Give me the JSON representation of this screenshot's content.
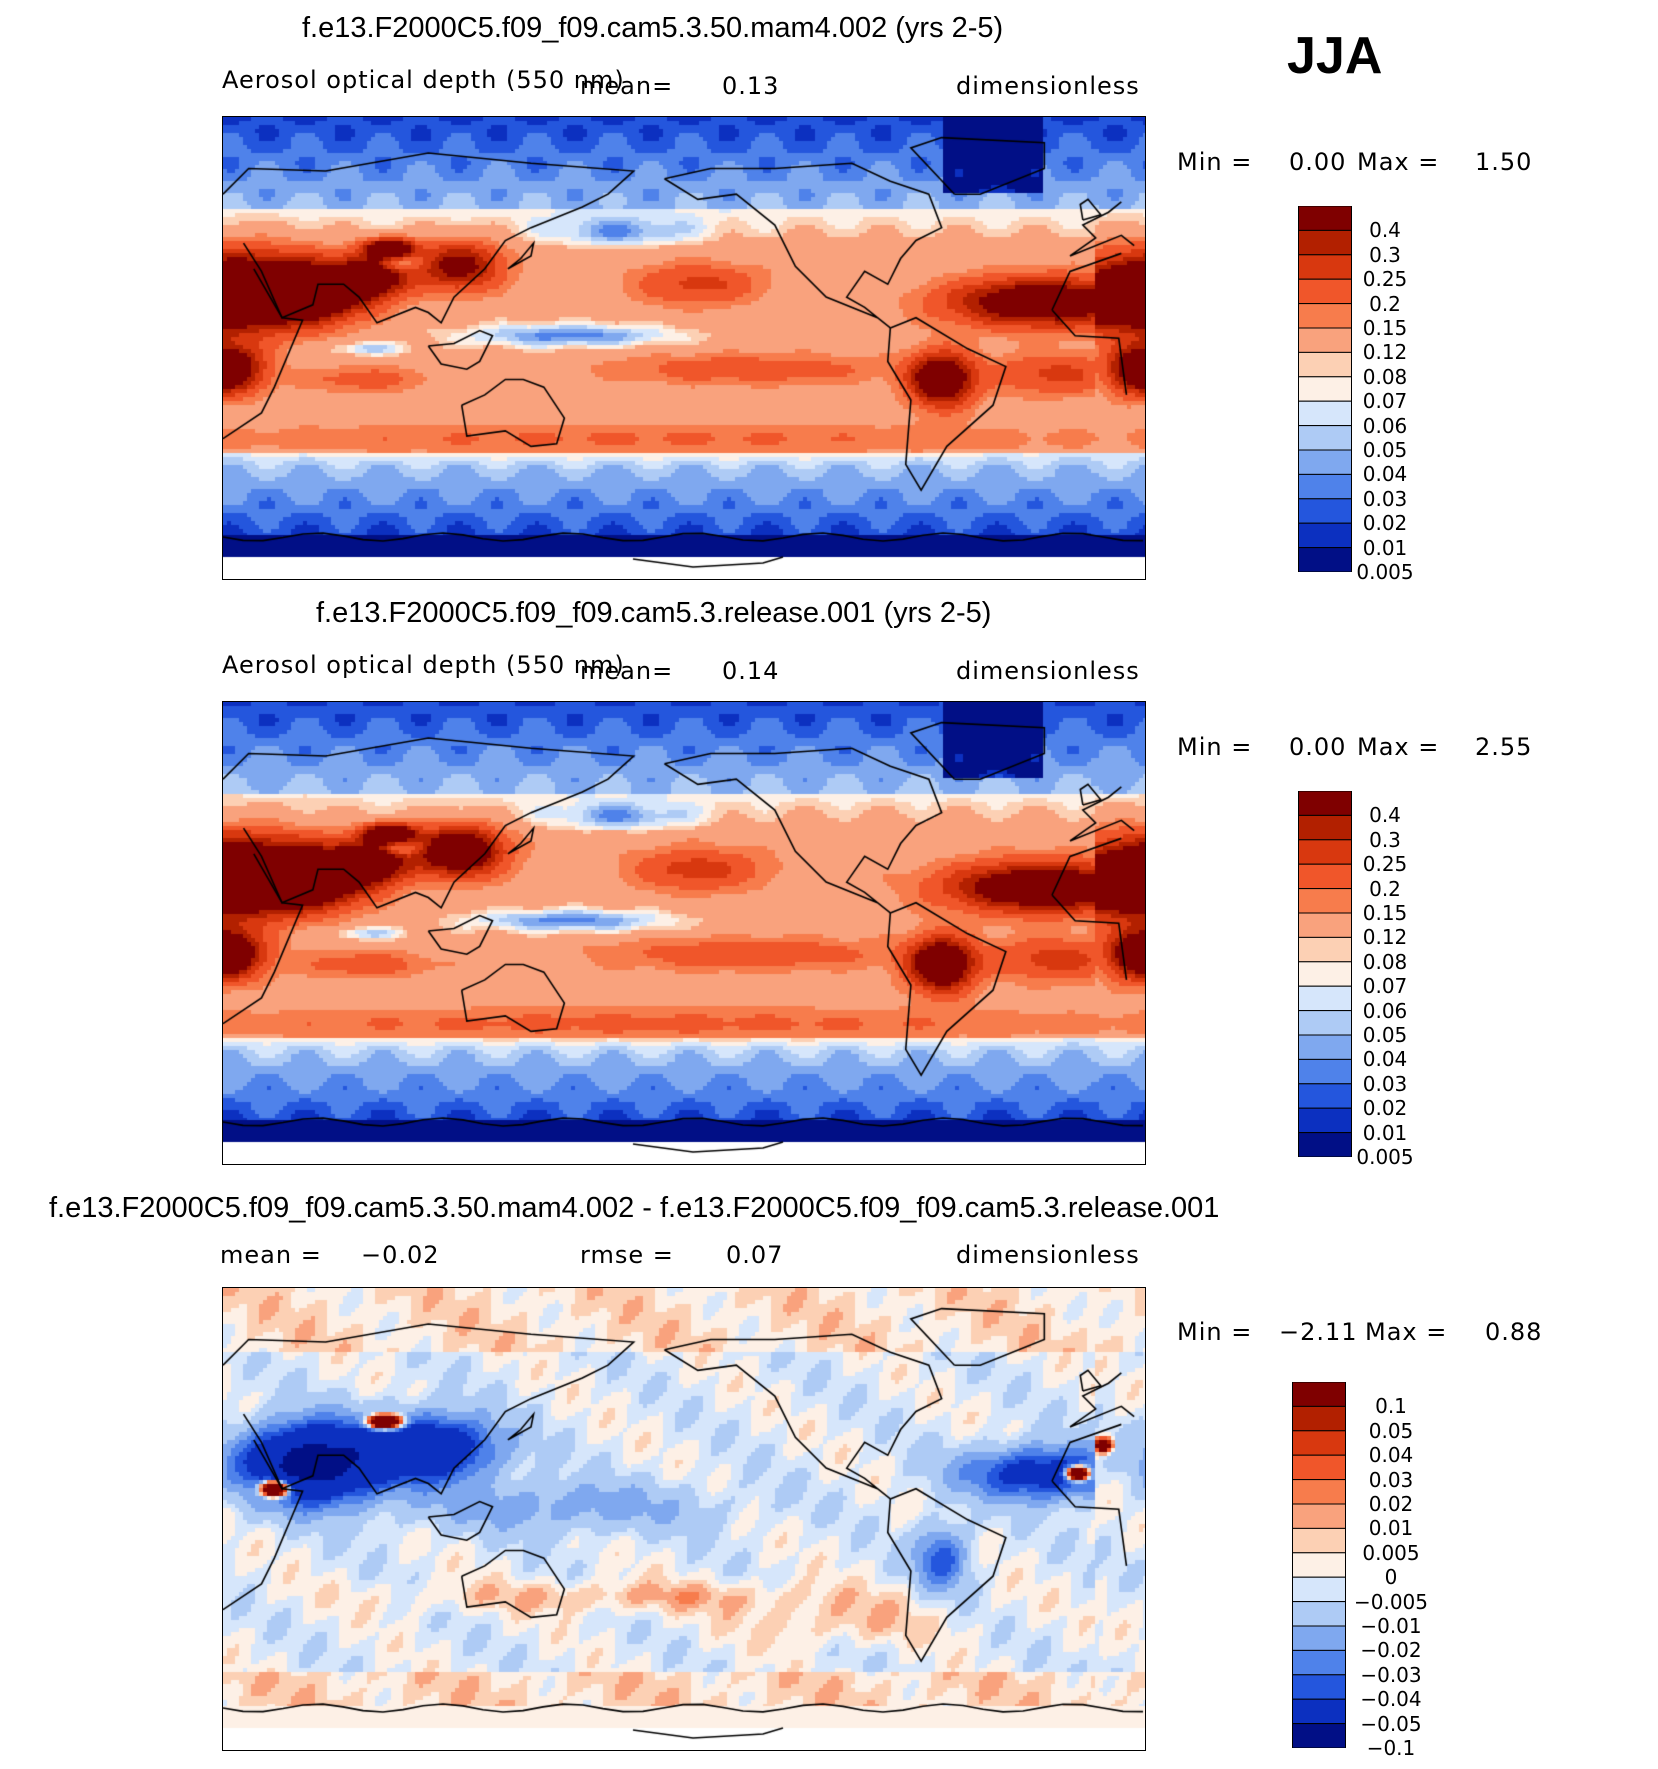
{
  "season": "JJA",
  "panels": [
    {
      "title": "f.e13.F2000C5.f09_f09.cam5.3.50.mam4.002 (yrs 2-5)",
      "variable": "Aerosol optical depth (550 nm)",
      "mean_label": "mean=",
      "mean_value": "0.13",
      "units": "dimensionless",
      "min_label": "Min =",
      "min_value": "0.00",
      "max_label": "Max =",
      "max_value": "1.50",
      "colorbar_levels": [
        "0.4",
        "0.3",
        "0.25",
        "0.2",
        "0.15",
        "0.12",
        "0.08",
        "0.07",
        "0.06",
        "0.05",
        "0.04",
        "0.03",
        "0.02",
        "0.01",
        "0.005"
      ]
    },
    {
      "title": "f.e13.F2000C5.f09_f09.cam5.3.release.001 (yrs 2-5)",
      "variable": "Aerosol optical depth (550 nm)",
      "mean_label": "mean=",
      "mean_value": "0.14",
      "units": "dimensionless",
      "min_label": "Min =",
      "min_value": "0.00",
      "max_label": "Max =",
      "max_value": "2.55",
      "colorbar_levels": [
        "0.4",
        "0.3",
        "0.25",
        "0.2",
        "0.15",
        "0.12",
        "0.08",
        "0.07",
        "0.06",
        "0.05",
        "0.04",
        "0.03",
        "0.02",
        "0.01",
        "0.005"
      ]
    },
    {
      "title": "f.e13.F2000C5.f09_f09.cam5.3.50.mam4.002 - f.e13.F2000C5.f09_f09.cam5.3.release.001",
      "mean_label": "mean =",
      "mean_value": "−0.02",
      "rmse_label": "rmse =",
      "rmse_value": "0.07",
      "units": "dimensionless",
      "min_label": "Min =",
      "min_value": "−2.11",
      "max_label": "Max =",
      "max_value": "0.88",
      "colorbar_levels": [
        "0.1",
        "0.05",
        "0.04",
        "0.03",
        "0.02",
        "0.01",
        "0.005",
        "0",
        "−0.005",
        "−0.01",
        "−0.02",
        "−0.03",
        "−0.04",
        "−0.05",
        "−0.1"
      ]
    }
  ],
  "chart_data": [
    {
      "type": "heatmap",
      "title": "f.e13.F2000C5.f09_f09.cam5.3.50.mam4.002 (yrs 2-5)",
      "variable": "Aerosol optical depth (550 nm)",
      "units": "dimensionless",
      "mean": 0.13,
      "min": 0.0,
      "max": 1.5,
      "contour_levels": [
        0.005,
        0.01,
        0.02,
        0.03,
        0.04,
        0.05,
        0.06,
        0.07,
        0.08,
        0.12,
        0.15,
        0.2,
        0.25,
        0.3,
        0.4
      ]
    },
    {
      "type": "heatmap",
      "title": "f.e13.F2000C5.f09_f09.cam5.3.release.001 (yrs 2-5)",
      "variable": "Aerosol optical depth (550 nm)",
      "units": "dimensionless",
      "mean": 0.14,
      "min": 0.0,
      "max": 2.55,
      "contour_levels": [
        0.005,
        0.01,
        0.02,
        0.03,
        0.04,
        0.05,
        0.06,
        0.07,
        0.08,
        0.12,
        0.15,
        0.2,
        0.25,
        0.3,
        0.4
      ]
    },
    {
      "type": "heatmap",
      "title": "f.e13.F2000C5.f09_f09.cam5.3.50.mam4.002 - f.e13.F2000C5.f09_f09.cam5.3.release.001",
      "units": "dimensionless",
      "mean": -0.02,
      "rmse": 0.07,
      "min": -2.11,
      "max": 0.88,
      "contour_levels": [
        -0.1,
        -0.05,
        -0.04,
        -0.03,
        -0.02,
        -0.01,
        -0.005,
        0,
        0.005,
        0.01,
        0.02,
        0.03,
        0.04,
        0.05,
        0.1
      ]
    }
  ],
  "colors": {
    "abs_scale": [
      "#7f0000",
      "#b22000",
      "#d8380f",
      "#f0562a",
      "#f77c4c",
      "#f9a27d",
      "#fcd0b4",
      "#fdf0e6",
      "#d6e6fb",
      "#aecbf5",
      "#7fa8ef",
      "#4f82ea",
      "#2456dd",
      "#0c30c0",
      "#010f86"
    ],
    "diff_scale": [
      "#7f0000",
      "#b22000",
      "#d8380f",
      "#f0562a",
      "#f77c4c",
      "#f9a27d",
      "#fcd0b4",
      "#fdf0e6",
      "#d6e6fb",
      "#aecbf5",
      "#7fa8ef",
      "#4f82ea",
      "#2456dd",
      "#0c30c0",
      "#010f86"
    ]
  }
}
